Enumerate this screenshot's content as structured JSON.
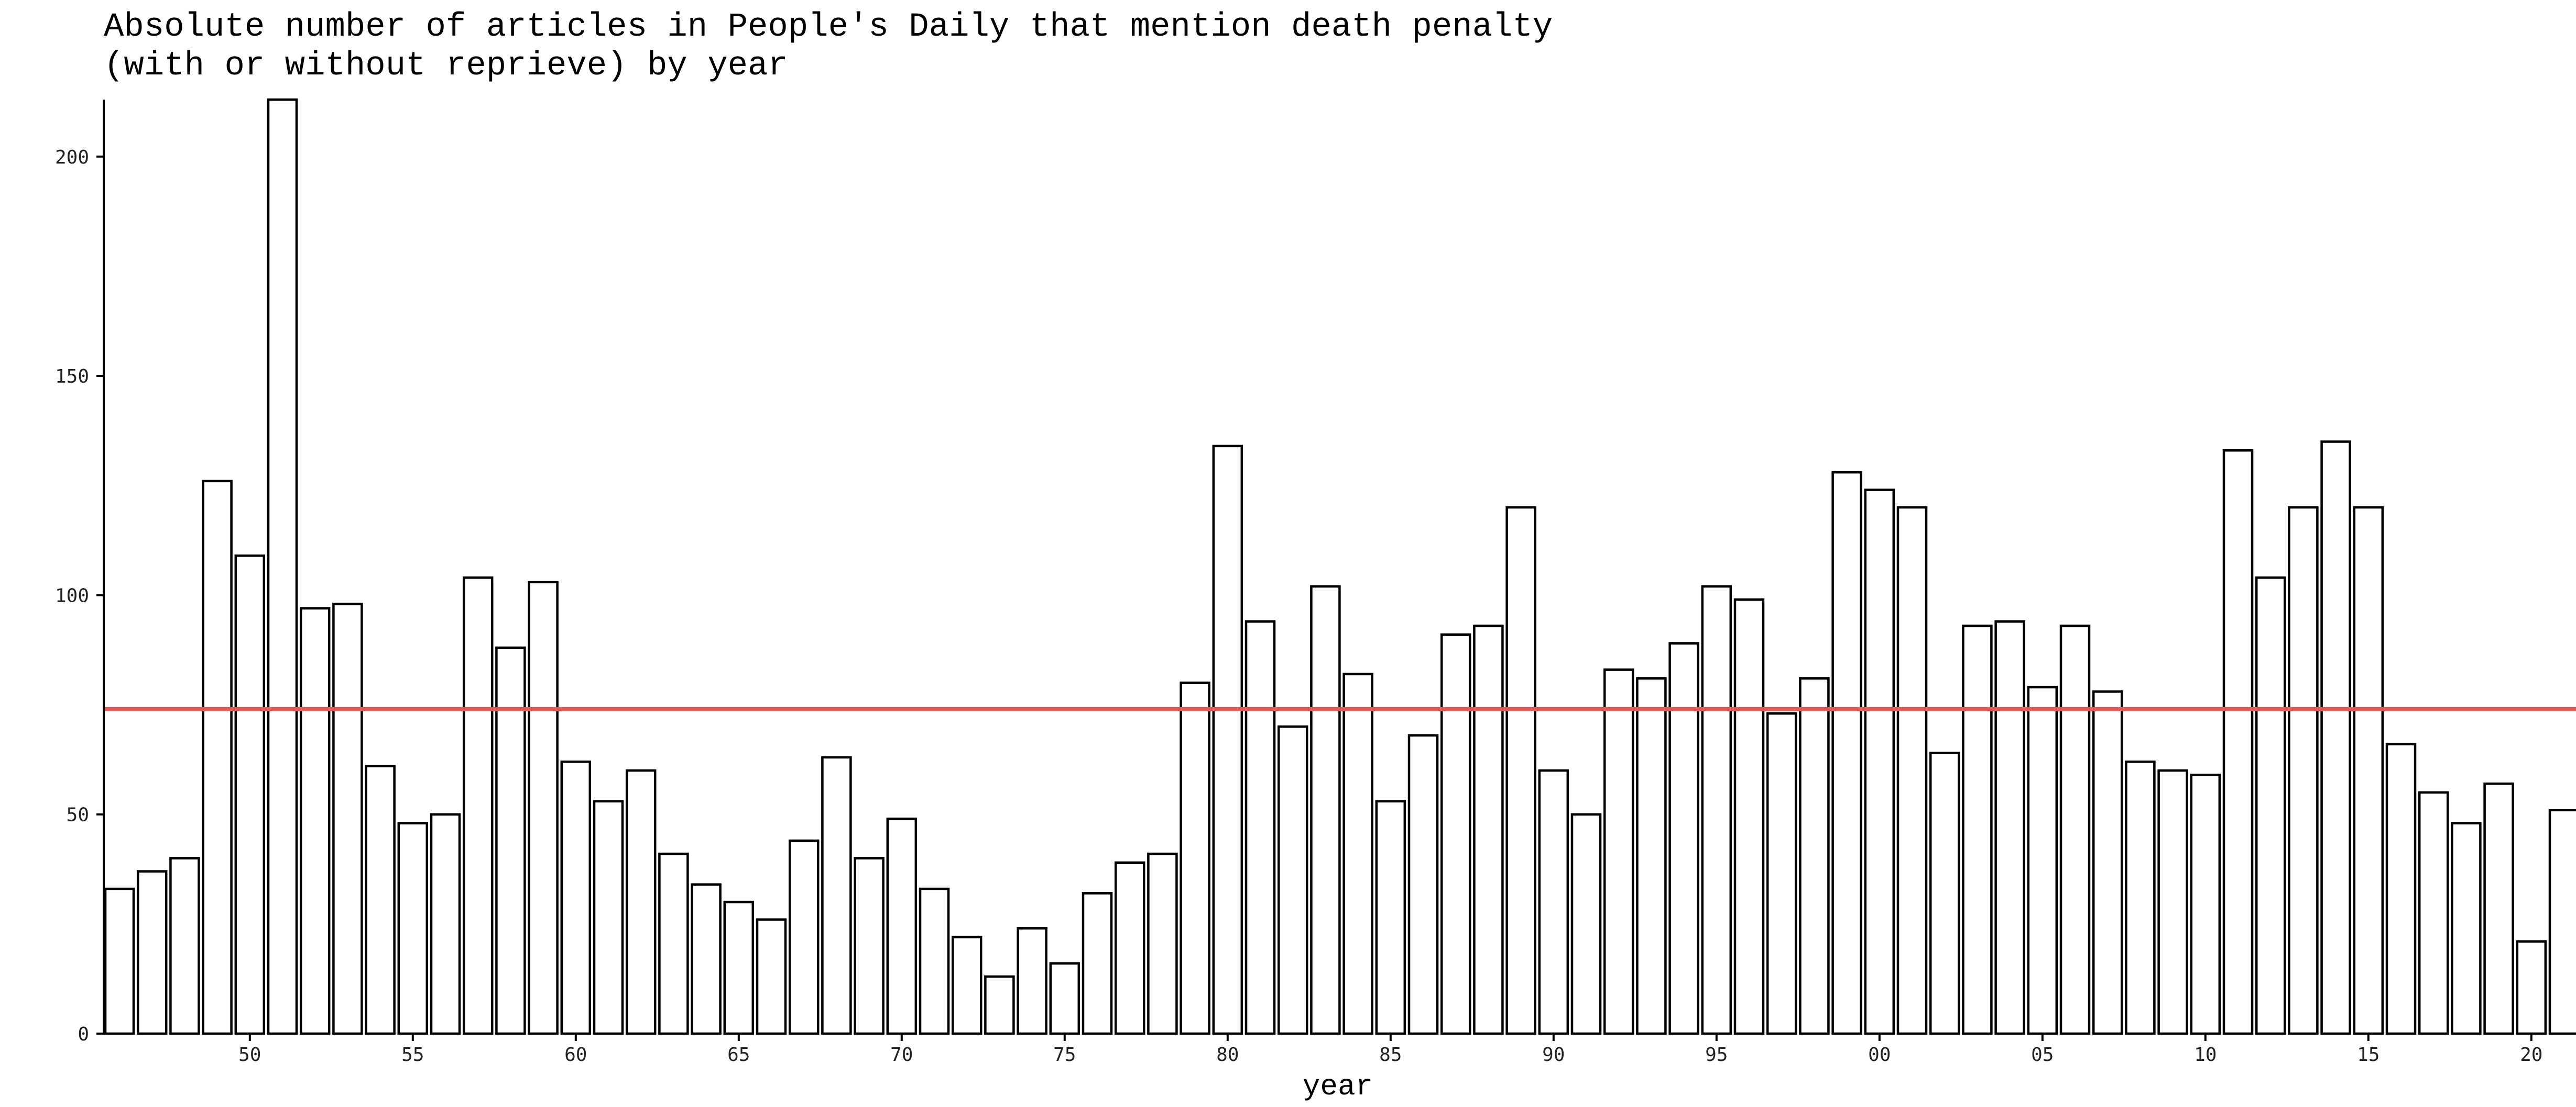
{
  "chart_data": {
    "type": "bar",
    "title_lines": [
      "Absolute number of articles in People's Daily that mention death penalty",
      "(with or without reprieve) by year"
    ],
    "xlabel": "year",
    "ylabel": "",
    "categories": [
      1946,
      1947,
      1948,
      1949,
      1950,
      1951,
      1952,
      1953,
      1954,
      1955,
      1956,
      1957,
      1958,
      1959,
      1960,
      1961,
      1962,
      1963,
      1964,
      1965,
      1966,
      1967,
      1968,
      1969,
      1970,
      1971,
      1972,
      1973,
      1974,
      1975,
      1976,
      1977,
      1978,
      1979,
      1980,
      1981,
      1982,
      1983,
      1984,
      1985,
      1986,
      1987,
      1988,
      1989,
      1990,
      1991,
      1992,
      1993,
      1994,
      1995,
      1996,
      1997,
      1998,
      1999,
      2000,
      2001,
      2002,
      2003,
      2004,
      2005,
      2006,
      2007,
      2008,
      2009,
      2010,
      2011,
      2012,
      2013,
      2014,
      2015,
      2016,
      2017,
      2018,
      2019,
      2020,
      2021
    ],
    "values": [
      33,
      37,
      40,
      126,
      109,
      213,
      97,
      98,
      61,
      48,
      50,
      104,
      88,
      103,
      62,
      53,
      60,
      41,
      34,
      30,
      26,
      44,
      63,
      40,
      49,
      33,
      22,
      13,
      24,
      16,
      32,
      39,
      41,
      80,
      134,
      94,
      70,
      102,
      82,
      53,
      68,
      91,
      93,
      120,
      60,
      50,
      83,
      81,
      89,
      102,
      99,
      73,
      81,
      128,
      124,
      120,
      64,
      93,
      94,
      79,
      93,
      78,
      62,
      60,
      59,
      133,
      104,
      120,
      135,
      120,
      66,
      55,
      48,
      57,
      21,
      51
    ],
    "reference_line": {
      "value": 74,
      "color": "#e05a5a"
    },
    "x_ticks": [
      {
        "year": 1950,
        "label": "50"
      },
      {
        "year": 1955,
        "label": "55"
      },
      {
        "year": 1960,
        "label": "60"
      },
      {
        "year": 1965,
        "label": "65"
      },
      {
        "year": 1970,
        "label": "70"
      },
      {
        "year": 1975,
        "label": "75"
      },
      {
        "year": 1980,
        "label": "80"
      },
      {
        "year": 1985,
        "label": "85"
      },
      {
        "year": 1990,
        "label": "90"
      },
      {
        "year": 1995,
        "label": "95"
      },
      {
        "year": 2000,
        "label": "00"
      },
      {
        "year": 2005,
        "label": "05"
      },
      {
        "year": 2010,
        "label": "10"
      },
      {
        "year": 2015,
        "label": "15"
      },
      {
        "year": 2020,
        "label": "20"
      }
    ],
    "y_ticks": [
      0,
      50,
      100,
      150,
      200
    ],
    "ylim": [
      0,
      213
    ],
    "grid": false,
    "legend": "none"
  }
}
